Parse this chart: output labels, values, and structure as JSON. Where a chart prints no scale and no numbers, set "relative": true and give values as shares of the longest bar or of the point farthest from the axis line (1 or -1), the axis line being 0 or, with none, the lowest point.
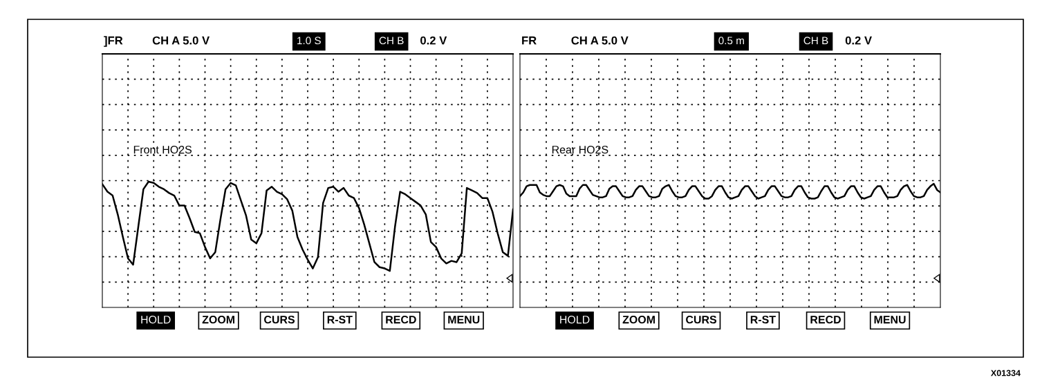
{
  "chart_data": [
    {
      "type": "line",
      "relative": true,
      "grid": true,
      "categories": [
        null,
        null,
        null,
        null,
        null,
        null,
        null,
        null,
        null,
        null,
        null,
        null,
        null,
        null,
        null,
        null,
        null,
        null,
        null,
        null,
        null,
        null,
        null,
        null,
        null,
        null,
        null,
        null,
        null,
        null,
        null,
        null,
        null,
        null,
        null,
        null,
        null,
        null,
        null,
        null,
        null,
        null,
        null,
        null,
        null,
        null,
        null,
        null,
        null,
        null,
        null,
        null,
        null,
        null,
        null,
        null,
        null,
        null,
        null,
        null,
        null,
        null,
        null,
        null,
        null,
        null,
        null,
        null,
        null,
        null,
        null,
        null,
        null,
        null,
        null,
        null,
        null,
        null,
        null,
        null,
        null
      ],
      "annotations": [
        "]FR",
        "CH A 5.0 V",
        "1.0 S",
        "CH B",
        "0.2 V",
        "HOLD",
        "ZOOM",
        "CURS",
        "R-ST",
        "RECD",
        "MENU",
        "Front HO2S"
      ],
      "series": [
        {
          "color": "#000000",
          "values": [
            0.98,
            0.92,
            0.89,
            0.74,
            0.56,
            0.39,
            0.34,
            0.64,
            0.94,
            1.0,
            0.99,
            0.96,
            0.94,
            0.91,
            0.89,
            0.81,
            0.81,
            0.71,
            0.6,
            0.59,
            0.48,
            0.39,
            0.44,
            0.7,
            0.94,
            0.99,
            0.97,
            0.85,
            0.73,
            0.54,
            0.51,
            0.59,
            0.93,
            0.96,
            0.92,
            0.9,
            0.86,
            0.77,
            0.56,
            0.46,
            0.38,
            0.31,
            0.4,
            0.83,
            0.95,
            0.96,
            0.92,
            0.95,
            0.89,
            0.87,
            0.79,
            0.66,
            0.51,
            0.36,
            0.32,
            0.31,
            0.29,
            0.64,
            0.92,
            0.9,
            0.87,
            0.84,
            0.81,
            0.74,
            0.52,
            0.48,
            0.39,
            0.35,
            0.37,
            0.36,
            0.43,
            0.95,
            0.93,
            0.91,
            0.87,
            0.87,
            0.76,
            0.59,
            0.44,
            0.41,
            0.78
          ]
        }
      ]
    },
    {
      "type": "line",
      "relative": true,
      "grid": true,
      "categories": [
        null,
        null,
        null,
        null,
        null,
        null,
        null,
        null,
        null,
        null,
        null,
        null,
        null,
        null,
        null,
        null,
        null,
        null,
        null,
        null,
        null,
        null,
        null,
        null,
        null,
        null,
        null,
        null,
        null,
        null,
        null,
        null,
        null,
        null,
        null,
        null,
        null,
        null,
        null,
        null,
        null,
        null,
        null,
        null,
        null,
        null,
        null,
        null,
        null,
        null,
        null,
        null,
        null,
        null,
        null,
        null,
        null,
        null,
        null,
        null,
        null,
        null,
        null,
        null,
        null,
        null,
        null,
        null,
        null,
        null,
        null,
        null,
        null,
        null,
        null,
        null,
        null,
        null,
        null,
        null,
        null,
        null,
        null,
        null,
        null,
        null,
        null,
        null,
        null,
        null,
        null,
        null,
        null,
        null,
        null,
        null,
        null,
        null,
        null,
        null,
        null,
        null,
        null,
        null,
        null,
        null,
        null,
        null,
        null,
        null,
        null,
        null,
        null,
        null,
        null,
        null,
        null,
        null,
        null,
        null,
        null,
        null,
        null,
        null,
        null,
        null,
        null,
        null
      ],
      "annotations": [
        "FR",
        "CH A 5.0 V",
        "0.5 m",
        "CH B",
        "0.2 V",
        "HOLD",
        "ZOOM",
        "CURS",
        "R-ST",
        "RECD",
        "MENU",
        "Rear HO2S",
        "X01334"
      ],
      "series": [
        {
          "color": "#000000",
          "values": [
            0.9,
            0.93,
            0.98,
            0.99,
            0.99,
            0.99,
            0.93,
            0.91,
            0.9,
            0.9,
            0.94,
            0.98,
            0.99,
            0.98,
            0.92,
            0.9,
            0.9,
            0.9,
            0.96,
            0.99,
            0.99,
            0.95,
            0.91,
            0.9,
            0.89,
            0.89,
            0.9,
            0.96,
            0.98,
            0.98,
            0.94,
            0.9,
            0.89,
            0.89,
            0.9,
            0.95,
            0.98,
            0.98,
            0.94,
            0.9,
            0.89,
            0.89,
            0.9,
            0.96,
            0.98,
            0.99,
            0.94,
            0.9,
            0.89,
            0.89,
            0.9,
            0.95,
            0.98,
            0.98,
            0.94,
            0.9,
            0.88,
            0.88,
            0.9,
            0.95,
            0.98,
            0.98,
            0.93,
            0.89,
            0.88,
            0.89,
            0.9,
            0.95,
            0.98,
            0.98,
            0.94,
            0.9,
            0.88,
            0.89,
            0.9,
            0.95,
            0.98,
            0.98,
            0.94,
            0.9,
            0.89,
            0.89,
            0.9,
            0.95,
            0.98,
            0.98,
            0.93,
            0.89,
            0.88,
            0.88,
            0.89,
            0.94,
            0.98,
            0.98,
            0.93,
            0.89,
            0.88,
            0.89,
            0.9,
            0.95,
            0.98,
            0.98,
            0.93,
            0.89,
            0.88,
            0.89,
            0.9,
            0.95,
            0.98,
            0.98,
            0.93,
            0.89,
            0.89,
            0.89,
            0.9,
            0.95,
            0.98,
            0.99,
            0.94,
            0.9,
            0.89,
            0.89,
            0.9,
            0.95,
            0.98,
            1.0,
            0.95,
            0.93
          ]
        }
      ]
    }
  ]
}
